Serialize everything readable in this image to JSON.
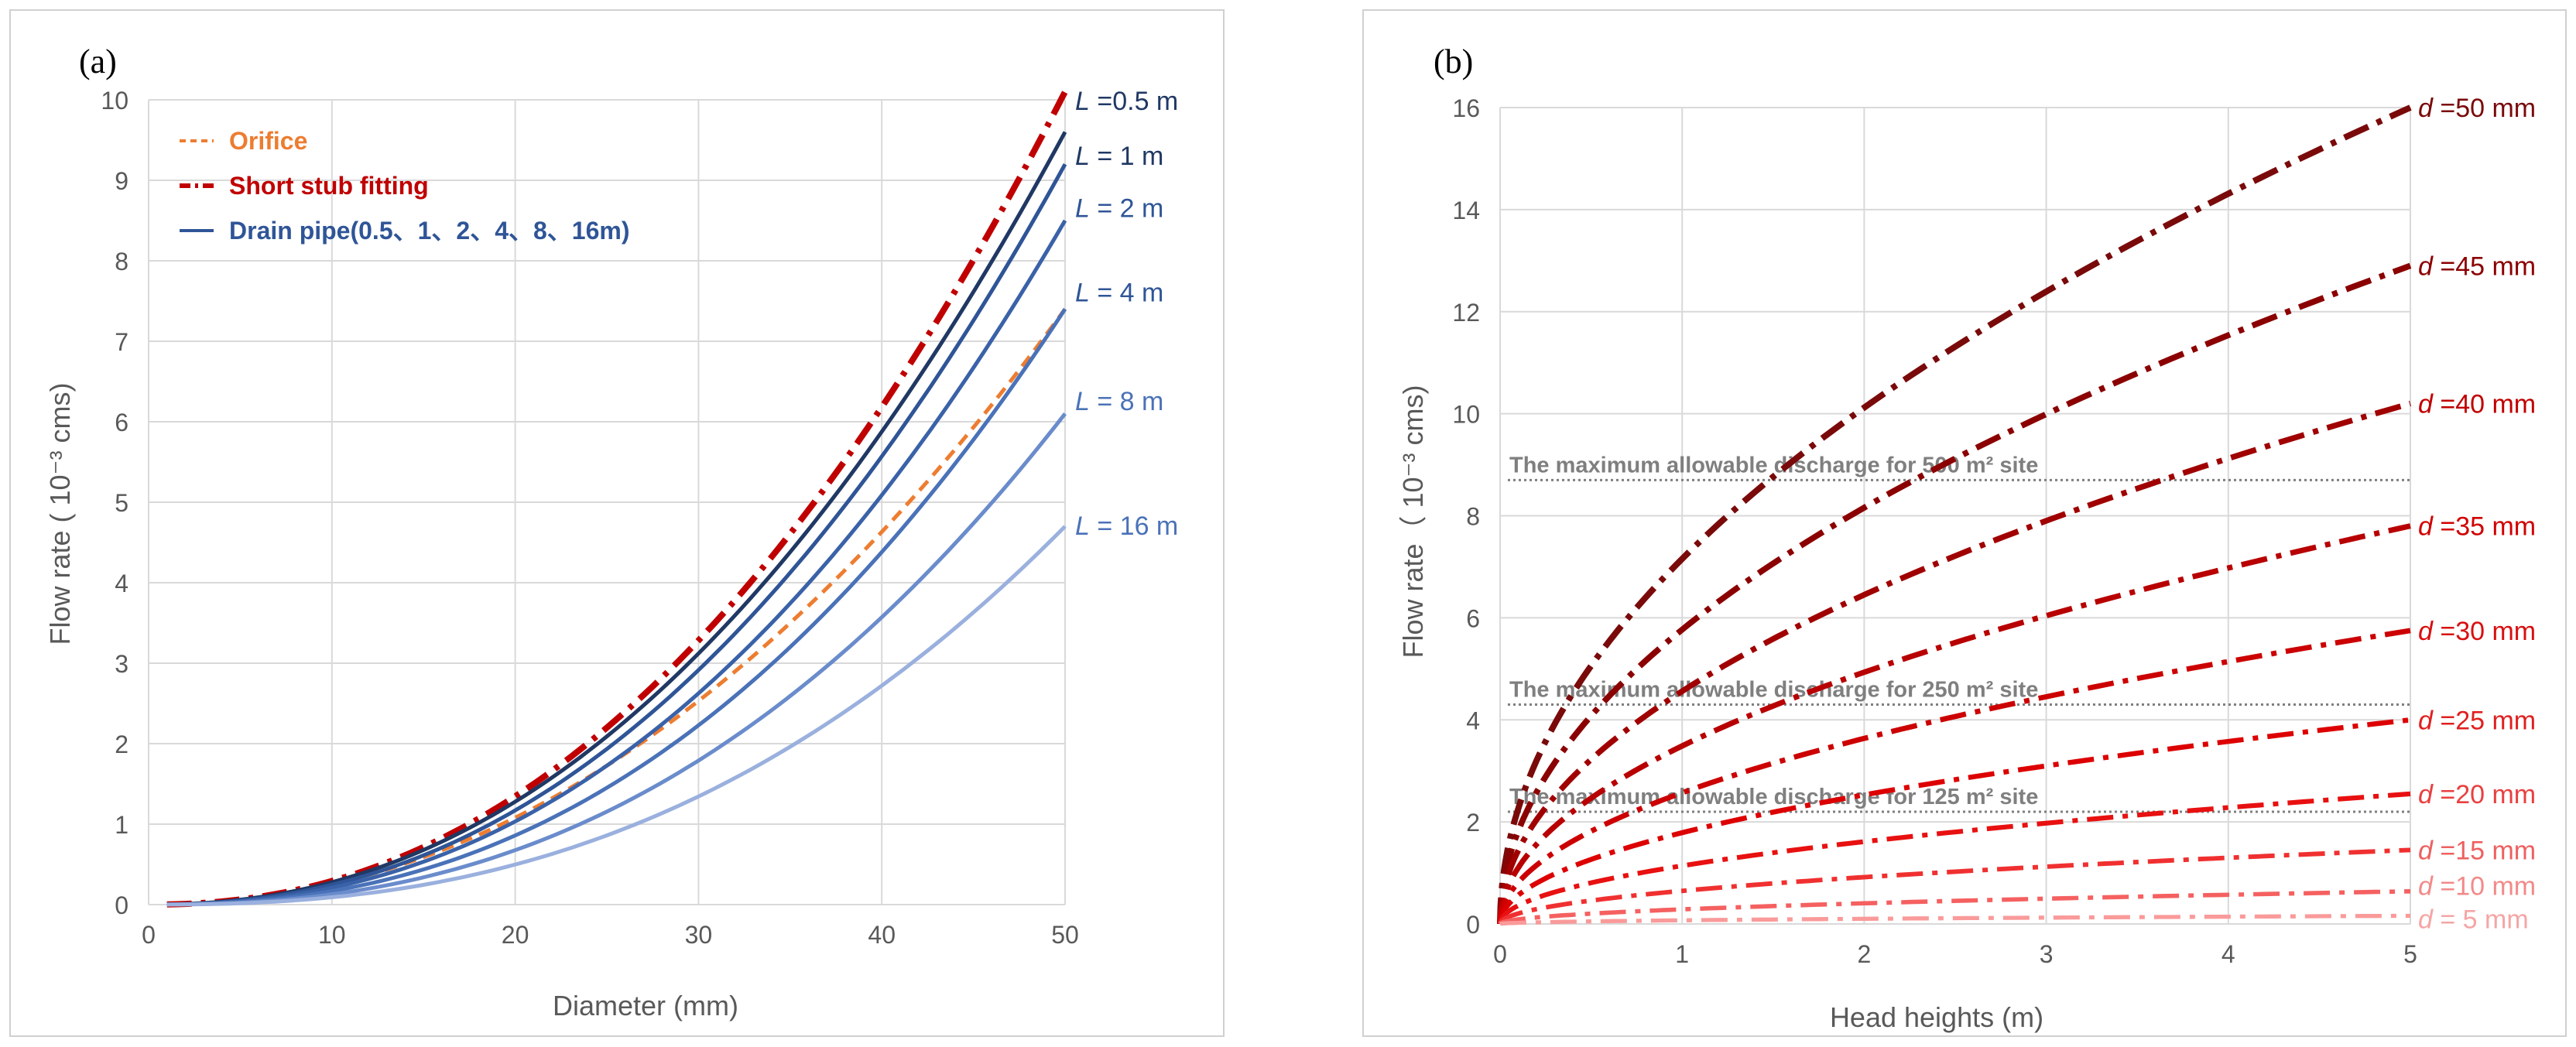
{
  "colors": {
    "orifice": "#ED7D31",
    "short_stub": "#C00000",
    "drain_pipe": [
      "#203864",
      "#2F5597",
      "#3A62A8",
      "#4A72B8",
      "#6A8CCC",
      "#9AB0DE"
    ],
    "head_curves": [
      "#7A0A0A",
      "#8B0000",
      "#A00000",
      "#B80000",
      "#CC0000",
      "#DD0000",
      "#E81010",
      "#F03030",
      "#F56060",
      "#FA9A9A"
    ],
    "head_labels": [
      "#7A0A0A",
      "#8B0000",
      "#C00000",
      "#D00000",
      "#D81010",
      "#E02020",
      "#E84040",
      "#EE6060",
      "#F28A8A",
      "#F5A5A5"
    ],
    "grid": "#D9D9D9",
    "axis_text": "#595959",
    "ref_line": "#7F7F7F"
  },
  "chart_data": [
    {
      "panel_label": "(a)",
      "type": "line",
      "title": "",
      "xlabel": "Diameter (mm)",
      "ylabel": "Flow rate ( 10⁻³ cms)",
      "xlim": [
        0,
        50
      ],
      "ylim": [
        0,
        10
      ],
      "xticks": [
        "0",
        "10",
        "20",
        "30",
        "40",
        "50"
      ],
      "yticks": [
        "0",
        "1",
        "2",
        "3",
        "4",
        "5",
        "6",
        "7",
        "8",
        "9",
        "10"
      ],
      "grid": true,
      "legend": {
        "position": "top-left",
        "entries": [
          {
            "label": "Orifice",
            "style": "dashed",
            "series": "orifice"
          },
          {
            "label": "Short stub fitting",
            "style": "dash-dot",
            "series": "short_stub"
          },
          {
            "label": "Drain pipe(0.5、1、2、4、8、16m)",
            "style": "solid",
            "series": "drain_pipe"
          }
        ]
      },
      "series": [
        {
          "name": "Orifice",
          "style": "dashed",
          "end_value": 7.4,
          "exponent": 2.1
        },
        {
          "name": "Short stub fitting",
          "style": "dash-dot",
          "end_value": 10.1,
          "exponent": 2.2
        },
        {
          "name": "L=0.5 m",
          "style": "solid",
          "end_value": 9.6,
          "exponent": 2.2
        },
        {
          "name": "L=1 m",
          "style": "solid",
          "end_value": 9.2,
          "exponent": 2.25
        },
        {
          "name": "L=2 m",
          "style": "solid",
          "end_value": 8.5,
          "exponent": 2.3
        },
        {
          "name": "L=4 m",
          "style": "solid",
          "end_value": 7.4,
          "exponent": 2.35
        },
        {
          "name": "L=8 m",
          "style": "solid",
          "end_value": 6.1,
          "exponent": 2.4
        },
        {
          "name": "L=16 m",
          "style": "solid",
          "end_value": 4.7,
          "exponent": 2.45
        }
      ],
      "annotations": [
        {
          "italic": "L",
          "text": " =0.5 m"
        },
        {
          "italic": "L",
          "text": " =   1 m"
        },
        {
          "italic": "L",
          "text": " =   2 m"
        },
        {
          "italic": "L",
          "text": " =   4 m"
        },
        {
          "italic": "L",
          "text": " =    8 m"
        },
        {
          "italic": "L",
          "text": " = 16 m"
        }
      ]
    },
    {
      "panel_label": "(b)",
      "type": "line",
      "title": "",
      "xlabel": "Head heights (m)",
      "ylabel": "Flow rate（ 10⁻³ cms)",
      "xlim": [
        0,
        5
      ],
      "ylim": [
        0,
        16
      ],
      "xticks": [
        "0",
        "1",
        "2",
        "3",
        "4",
        "5"
      ],
      "yticks": [
        "0",
        "2",
        "4",
        "6",
        "8",
        "10",
        "12",
        "14",
        "16"
      ],
      "grid": true,
      "series": [
        {
          "name": "d=50 mm",
          "style": "dash-dot",
          "end_value": 16.0
        },
        {
          "name": "d=45 mm",
          "style": "dash-dot",
          "end_value": 12.9
        },
        {
          "name": "d=40 mm",
          "style": "dash-dot",
          "end_value": 10.2
        },
        {
          "name": "d=35 mm",
          "style": "dash-dot",
          "end_value": 7.8
        },
        {
          "name": "d=30 mm",
          "style": "dash-dot",
          "end_value": 5.75
        },
        {
          "name": "d=25 mm",
          "style": "dash-dot",
          "end_value": 4.0
        },
        {
          "name": "d=20 mm",
          "style": "dash-dot",
          "end_value": 2.55
        },
        {
          "name": "d=15 mm",
          "style": "dash-dot",
          "end_value": 1.45
        },
        {
          "name": "d=10 mm",
          "style": "dash-dot",
          "end_value": 0.64
        },
        {
          "name": "d=5 mm",
          "style": "dash-dot",
          "end_value": 0.16
        }
      ],
      "curve_labels": [
        {
          "italic": "d",
          "text": " =50 mm"
        },
        {
          "italic": "d",
          "text": " =45 mm"
        },
        {
          "italic": "d",
          "text": " =40 mm"
        },
        {
          "italic": "d",
          "text": " =35 mm"
        },
        {
          "italic": "d",
          "text": " =30 mm"
        },
        {
          "italic": "d",
          "text": " =25 mm"
        },
        {
          "italic": "d",
          "text": " =20 mm"
        },
        {
          "italic": "d",
          "text": " =15 mm"
        },
        {
          "italic": "d",
          "text": " =10 mm"
        },
        {
          "italic": "d",
          "text": " =  5 mm"
        }
      ],
      "reference_lines": [
        {
          "y": 8.7,
          "label": "The maximum allowable discharge for 500 m² site"
        },
        {
          "y": 4.3,
          "label": "The maximum allowable discharge for 250 m² site"
        },
        {
          "y": 2.2,
          "label": "The maximum allowable discharge for 125 m² site"
        }
      ]
    }
  ]
}
